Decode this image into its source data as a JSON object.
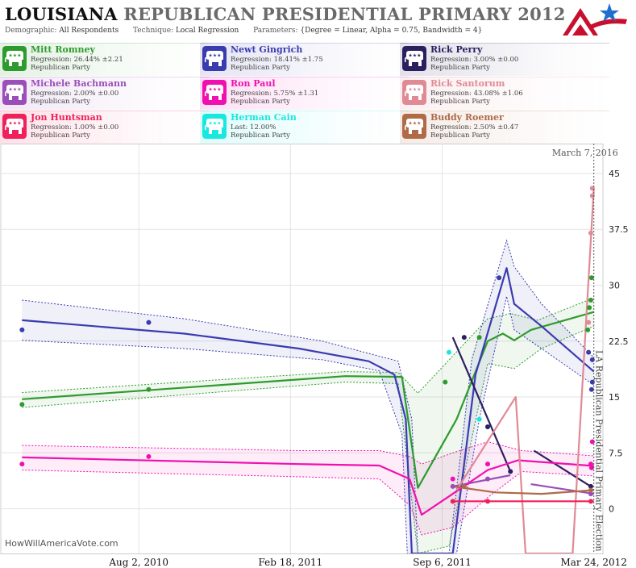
{
  "header": {
    "title_state": "LOUISIANA",
    "title_rest": "REPUBLICAN PRESIDENTIAL PRIMARY 2012",
    "demographic_label": "Demographic:",
    "demographic_value": "All Respondents",
    "technique_label": "Technique:",
    "technique_value": "Local Regression",
    "parameters_label": "Parameters:",
    "parameters_value": "{Degree = Linear, Alpha = 0.75, Bandwidth = 4}"
  },
  "legend": [
    {
      "name": "Mitt Romney",
      "stat": "Regression: 26.44% ±2.21",
      "party": "Republican Party",
      "color": "#2e9b2e"
    },
    {
      "name": "Newt Gingrich",
      "stat": "Regression: 18.41% ±1.75",
      "party": "Republican Party",
      "color": "#3b3bb0"
    },
    {
      "name": "Rick Perry",
      "stat": "Regression: 3.00% ±0.00",
      "party": "Republican Party",
      "color": "#2a2060"
    },
    {
      "name": "Michele Bachmann",
      "stat": "Regression: 2.00% ±0.00",
      "party": "Republican Party",
      "color": "#9a4fb8"
    },
    {
      "name": "Ron Paul",
      "stat": "Regression: 5.75% ±1.31",
      "party": "Republican Party",
      "color": "#f010b0"
    },
    {
      "name": "Rick Santorum",
      "stat": "Regression: 43.08% ±1.06",
      "party": "Republican Party",
      "color": "#e08a95"
    },
    {
      "name": "Jon Huntsman",
      "stat": "Regression: 1.00% ±0.00",
      "party": "Republican Party",
      "color": "#f0205a"
    },
    {
      "name": "Herman Cain",
      "stat": "Last: 12.00%",
      "party": "Republican Party",
      "color": "#19e8e0"
    },
    {
      "name": "Buddy Roemer",
      "stat": "Regression: 2.50% ±0.47",
      "party": "Republican Party",
      "color": "#b06a48"
    }
  ],
  "annotations": {
    "current_date": "March 7, 2016",
    "event_label": "LA Republican Presidential Primary Election",
    "watermark": "HowWillAmericaVote.com"
  },
  "chart_data": {
    "type": "line",
    "x_ticks": [
      "Aug 2, 2010",
      "Feb 18, 2011",
      "Sep 6, 2011",
      "Mar 24, 2012"
    ],
    "y_ticks": [
      0,
      7.5,
      15,
      22.5,
      30,
      37.5,
      45
    ],
    "ylim": [
      -6,
      49
    ],
    "xlim": [
      "2010-02-01",
      "2012-04-05"
    ],
    "grid": true,
    "series": [
      {
        "name": "Mitt Romney",
        "color": "#2e9b2e",
        "points": [
          [
            "2010-03-01",
            14
          ],
          [
            "2010-08-15",
            16
          ],
          [
            "2011-09-10",
            17
          ],
          [
            "2011-10-25",
            23
          ],
          [
            "2012-03-16",
            24
          ],
          [
            "2012-03-20",
            28
          ],
          [
            "2012-03-21",
            31
          ],
          [
            "2012-03-18",
            27
          ]
        ],
        "trend": [
          [
            "2010-03-01",
            14.7
          ],
          [
            "2011-05-01",
            17.8
          ],
          [
            "2011-07-15",
            17.7
          ],
          [
            "2011-08-05",
            2.8
          ],
          [
            "2011-09-25",
            12
          ],
          [
            "2011-11-05",
            22.5
          ],
          [
            "2011-11-25",
            23.5
          ],
          [
            "2011-12-10",
            22.6
          ],
          [
            "2012-01-01",
            24
          ],
          [
            "2012-03-24",
            26.4
          ]
        ],
        "upper": [
          [
            "2010-03-01",
            15.6
          ],
          [
            "2011-05-01",
            18.4
          ],
          [
            "2011-07-10",
            18.3
          ],
          [
            "2011-08-05",
            15.5
          ],
          [
            "2011-09-20",
            20.5
          ],
          [
            "2011-11-05",
            25.5
          ],
          [
            "2011-12-05",
            26.2
          ],
          [
            "2012-01-10",
            25.3
          ],
          [
            "2012-03-24",
            28.3
          ]
        ],
        "lower": [
          [
            "2010-03-01",
            13.6
          ],
          [
            "2011-05-01",
            17.0
          ],
          [
            "2011-07-10",
            16.8
          ],
          [
            "2011-08-05",
            -6
          ],
          [
            "2011-09-15",
            -5
          ],
          [
            "2011-11-05",
            19.5
          ],
          [
            "2011-12-10",
            18.8
          ],
          [
            "2012-01-15",
            21.5
          ],
          [
            "2012-03-24",
            24.5
          ]
        ]
      },
      {
        "name": "Newt Gingrich",
        "color": "#3b3bb0",
        "points": [
          [
            "2010-03-01",
            24
          ],
          [
            "2010-08-15",
            25
          ],
          [
            "2011-11-20",
            31
          ],
          [
            "2012-03-17",
            21
          ],
          [
            "2012-03-22",
            20
          ],
          [
            "2012-03-22",
            17
          ],
          [
            "2012-03-21",
            16
          ]
        ],
        "trend": [
          [
            "2010-03-01",
            25.3
          ],
          [
            "2010-10-01",
            23.5
          ],
          [
            "2011-03-01",
            21.5
          ],
          [
            "2011-06-01",
            19.8
          ],
          [
            "2011-07-05",
            18.0
          ],
          [
            "2011-07-20",
            12
          ],
          [
            "2011-07-28",
            -6
          ],
          [
            "2011-09-20",
            -6
          ],
          [
            "2011-10-20",
            18
          ],
          [
            "2011-11-30",
            32.3
          ],
          [
            "2011-12-10",
            27.5
          ],
          [
            "2012-01-15",
            24.5
          ],
          [
            "2012-03-24",
            18.4
          ]
        ],
        "upper": [
          [
            "2010-03-01",
            28.0
          ],
          [
            "2010-10-01",
            25.5
          ],
          [
            "2011-04-01",
            22.5
          ],
          [
            "2011-07-10",
            19.8
          ],
          [
            "2011-07-28",
            12
          ],
          [
            "2011-08-05",
            -6
          ],
          [
            "2011-09-15",
            -6
          ],
          [
            "2011-10-15",
            20
          ],
          [
            "2011-11-30",
            36
          ],
          [
            "2011-12-10",
            32.5
          ],
          [
            "2012-01-15",
            27.5
          ],
          [
            "2012-03-24",
            20.3
          ]
        ],
        "lower": [
          [
            "2010-03-01",
            22.6
          ],
          [
            "2010-10-01",
            21.5
          ],
          [
            "2011-04-01",
            20.0
          ],
          [
            "2011-06-15",
            18.5
          ],
          [
            "2011-07-15",
            10
          ],
          [
            "2011-07-22",
            -6
          ],
          [
            "2011-09-25",
            -6
          ],
          [
            "2011-10-25",
            12
          ],
          [
            "2011-11-30",
            28.5
          ],
          [
            "2011-12-10",
            24
          ],
          [
            "2012-01-15",
            21.5
          ],
          [
            "2012-03-24",
            16.6
          ]
        ]
      },
      {
        "name": "Rick Perry",
        "color": "#2a2060",
        "points": [
          [
            "2011-10-05",
            23
          ],
          [
            "2011-11-05",
            11
          ],
          [
            "2011-12-05",
            5
          ]
        ],
        "trend": [
          [
            "2011-09-20",
            23.0
          ],
          [
            "2011-12-05",
            5.0
          ]
        ]
      },
      {
        "name": "Rick Perry (late)",
        "color": "#2a2060",
        "points": [
          [
            "2012-03-20",
            3
          ]
        ],
        "trend": [
          [
            "2012-01-05",
            7.8
          ],
          [
            "2012-03-20",
            3.0
          ]
        ]
      },
      {
        "name": "Michele Bachmann",
        "color": "#9a4fb8",
        "points": [
          [
            "2011-09-20",
            3
          ],
          [
            "2011-11-05",
            4
          ]
        ],
        "trend": [
          [
            "2011-09-20",
            3.0
          ],
          [
            "2011-12-05",
            4.5
          ]
        ]
      },
      {
        "name": "Michele Bachmann (late)",
        "color": "#9a4fb8",
        "points": [
          [
            "2012-03-20",
            2
          ]
        ],
        "trend": [
          [
            "2012-01-01",
            3.3
          ],
          [
            "2012-03-24",
            2.0
          ]
        ]
      },
      {
        "name": "Ron Paul",
        "color": "#f010b0",
        "points": [
          [
            "2010-03-01",
            6
          ],
          [
            "2010-08-15",
            7
          ],
          [
            "2011-09-20",
            4
          ],
          [
            "2011-11-05",
            6
          ],
          [
            "2012-03-20",
            6
          ],
          [
            "2012-03-22",
            9
          ],
          [
            "2012-03-21",
            5.5
          ]
        ],
        "trend": [
          [
            "2010-03-01",
            6.9
          ],
          [
            "2011-03-01",
            6.0
          ],
          [
            "2011-06-15",
            5.8
          ],
          [
            "2011-07-25",
            4.0
          ],
          [
            "2011-08-10",
            -0.8
          ],
          [
            "2011-09-20",
            2.0
          ],
          [
            "2011-11-05",
            5.2
          ],
          [
            "2011-12-15",
            6.5
          ],
          [
            "2012-03-24",
            5.75
          ]
        ],
        "upper": [
          [
            "2010-03-01",
            8.5
          ],
          [
            "2011-03-01",
            7.8
          ],
          [
            "2011-06-15",
            7.8
          ],
          [
            "2011-07-25",
            7
          ],
          [
            "2011-08-10",
            6
          ],
          [
            "2011-09-20",
            7.5
          ],
          [
            "2011-11-05",
            9
          ],
          [
            "2011-12-20",
            7.8
          ],
          [
            "2012-03-24",
            7.1
          ]
        ],
        "lower": [
          [
            "2010-03-01",
            5.2
          ],
          [
            "2011-03-01",
            4.3
          ],
          [
            "2011-06-15",
            4.0
          ],
          [
            "2011-07-25",
            0.5
          ],
          [
            "2011-08-10",
            -3.5
          ],
          [
            "2011-09-20",
            -2.5
          ],
          [
            "2011-11-05",
            1.5
          ],
          [
            "2011-12-20",
            5.0
          ],
          [
            "2012-03-24",
            4.4
          ]
        ]
      },
      {
        "name": "Rick Santorum",
        "color": "#e08a95",
        "points": [
          [
            "2012-03-17",
            25
          ],
          [
            "2012-03-20",
            37
          ],
          [
            "2012-03-22",
            42
          ],
          [
            "2012-03-22",
            43
          ]
        ],
        "trend": [
          [
            "2011-09-25",
            2.5
          ],
          [
            "2011-12-12",
            15
          ],
          [
            "2011-12-25",
            -6
          ],
          [
            "2012-02-25",
            -6
          ],
          [
            "2012-03-24",
            43.08
          ]
        ]
      },
      {
        "name": "Jon Huntsman",
        "color": "#f0205a",
        "points": [
          [
            "2011-09-20",
            1
          ],
          [
            "2011-11-05",
            1
          ],
          [
            "2012-03-20",
            1
          ]
        ],
        "trend": [
          [
            "2011-09-20",
            1.0
          ],
          [
            "2011-11-05",
            1.0
          ],
          [
            "2012-01-01",
            1.0
          ],
          [
            "2012-03-24",
            1.0
          ]
        ]
      },
      {
        "name": "Herman Cain",
        "color": "#19e8e0",
        "points": [
          [
            "2011-09-15",
            21
          ],
          [
            "2011-10-25",
            12
          ]
        ],
        "trend": []
      },
      {
        "name": "Buddy Roemer",
        "color": "#b06a48",
        "points": [
          [
            "2011-10-05",
            3
          ],
          [
            "2012-03-20",
            2.5
          ]
        ],
        "trend": [
          [
            "2011-09-20",
            3.0
          ],
          [
            "2011-11-15",
            2.2
          ],
          [
            "2012-01-15",
            2.0
          ],
          [
            "2012-03-24",
            2.5
          ]
        ]
      }
    ]
  }
}
